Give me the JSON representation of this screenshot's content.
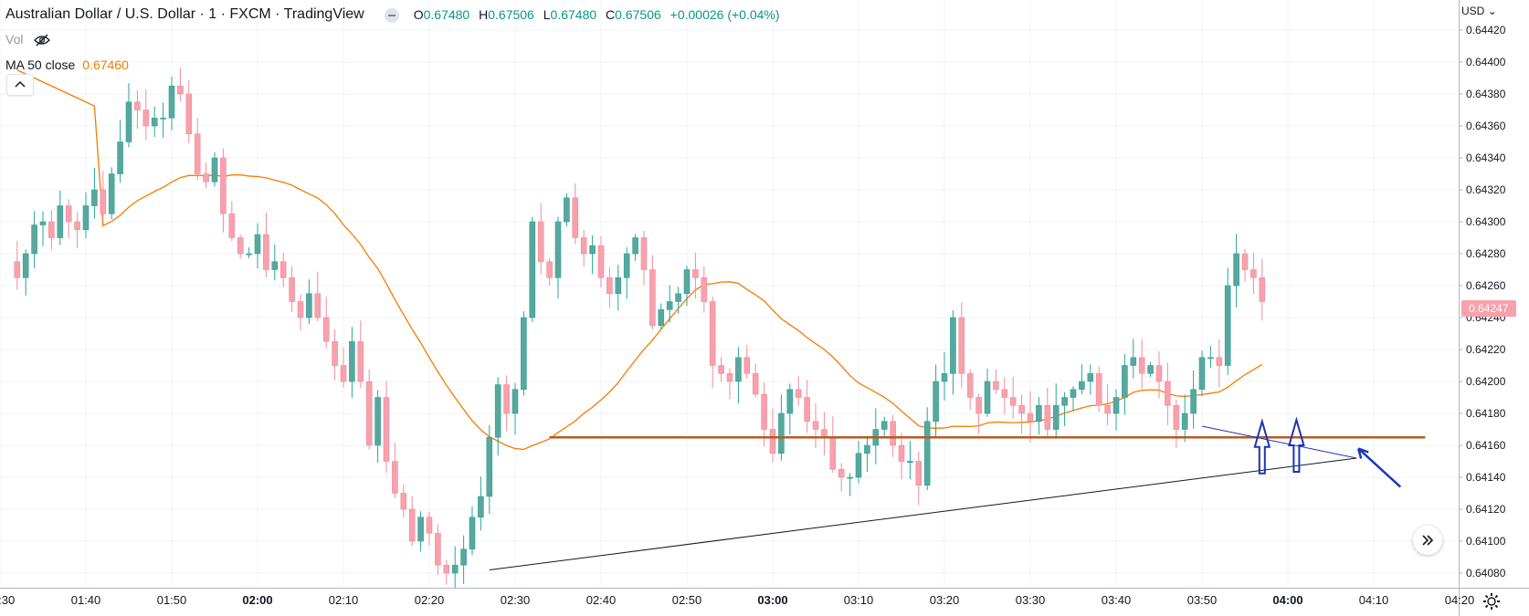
{
  "header": {
    "title": "Australian Dollar / U.S. Dollar · 1 · FXCM · TradingView",
    "ohlc": {
      "o_label": "O",
      "o_value": "0.67480",
      "h_label": "H",
      "h_value": "0.67506",
      "l_label": "L",
      "l_value": "0.67480",
      "c_label": "C",
      "c_value": "0.67506",
      "change": "+0.00026 (+0.04%)"
    },
    "vol_label": "Vol",
    "ma_label": "MA 50 close",
    "ma_value": "0.67460"
  },
  "price_scale": {
    "currency": "USD",
    "current_price": "0.64247",
    "current_price_color": "#f7a1ad"
  },
  "colors": {
    "up": "#26a69a",
    "down": "#ef5350",
    "ma": "#f57c00",
    "support_line": "#b85a1f",
    "arrows": "#1a35b8"
  },
  "icons": {
    "title_chip": "eye-off-chip-icon",
    "vol_visibility": "eye-off-icon",
    "collapse": "chevron-up-icon",
    "scroll": "double-chevron-right-icon",
    "settings": "gear-icon"
  },
  "chart_data": {
    "type": "candlestick",
    "title": "Australian Dollar / U.S. Dollar · 1 · FXCM · TradingView",
    "y_ticks": [
      "0.64420",
      "0.64400",
      "0.64380",
      "0.64360",
      "0.64340",
      "0.64320",
      "0.64300",
      "0.64280",
      "0.64260",
      "0.64240",
      "0.64220",
      "0.64200",
      "0.64180",
      "0.64160",
      "0.64140",
      "0.64120",
      "0.64100",
      "0.64080"
    ],
    "ylim": [
      0.6407,
      0.6443
    ],
    "x_ticks": [
      {
        "label": "01:30",
        "bold": false
      },
      {
        "label": "01:40",
        "bold": false
      },
      {
        "label": "01:50",
        "bold": false
      },
      {
        "label": "02:00",
        "bold": true
      },
      {
        "label": "02:10",
        "bold": false
      },
      {
        "label": "02:20",
        "bold": false
      },
      {
        "label": "02:30",
        "bold": false
      },
      {
        "label": "02:40",
        "bold": false
      },
      {
        "label": "02:50",
        "bold": false
      },
      {
        "label": "03:00",
        "bold": true
      },
      {
        "label": "03:10",
        "bold": false
      },
      {
        "label": "03:20",
        "bold": false
      },
      {
        "label": "03:30",
        "bold": false
      },
      {
        "label": "03:40",
        "bold": false
      },
      {
        "label": "03:50",
        "bold": false
      },
      {
        "label": "04:00",
        "bold": true
      },
      {
        "label": "04:10",
        "bold": false
      },
      {
        "label": "04:20",
        "bold": false
      }
    ],
    "candle_start": "01:32",
    "candle_interval_minutes": 1,
    "close": [
      0.64265,
      0.6428,
      0.64298,
      0.643,
      0.6429,
      0.6431,
      0.643,
      0.64295,
      0.6431,
      0.6432,
      0.64305,
      0.6433,
      0.6435,
      0.64375,
      0.6437,
      0.6436,
      0.64365,
      0.64365,
      0.64385,
      0.6438,
      0.64355,
      0.6433,
      0.64325,
      0.6434,
      0.64305,
      0.6429,
      0.6428,
      0.6428,
      0.64292,
      0.6427,
      0.64275,
      0.64265,
      0.6425,
      0.6424,
      0.64255,
      0.6424,
      0.64225,
      0.6421,
      0.642,
      0.64225,
      0.642,
      0.6416,
      0.6419,
      0.6415,
      0.6413,
      0.6412,
      0.641,
      0.64115,
      0.64105,
      0.64085,
      0.6408,
      0.64085,
      0.64095,
      0.64115,
      0.64128,
      0.64165,
      0.64198,
      0.6418,
      0.64195,
      0.6424,
      0.643,
      0.64275,
      0.64265,
      0.643,
      0.64315,
      0.6429,
      0.6428,
      0.64285,
      0.64265,
      0.64255,
      0.64265,
      0.6428,
      0.6429,
      0.6427,
      0.64235,
      0.64245,
      0.6425,
      0.64255,
      0.6427,
      0.64265,
      0.6425,
      0.6421,
      0.64205,
      0.642,
      0.64215,
      0.64205,
      0.64192,
      0.6417,
      0.64155,
      0.6418,
      0.64195,
      0.6419,
      0.64175,
      0.6417,
      0.64165,
      0.64145,
      0.6414,
      0.6414,
      0.64155,
      0.6416,
      0.6417,
      0.64175,
      0.6416,
      0.6415,
      0.6415,
      0.64135,
      0.64175,
      0.642,
      0.64205,
      0.6424,
      0.64205,
      0.6419,
      0.6418,
      0.642,
      0.64195,
      0.6419,
      0.64185,
      0.6418,
      0.64175,
      0.64185,
      0.6417,
      0.64185,
      0.6419,
      0.64195,
      0.642,
      0.64205,
      0.64185,
      0.6418,
      0.6419,
      0.6421,
      0.64215,
      0.64205,
      0.6421,
      0.642,
      0.64185,
      0.6417,
      0.6418,
      0.64195,
      0.64215,
      0.64215,
      0.6421,
      0.6426,
      0.6428,
      0.6427,
      0.64265,
      0.6425
    ],
    "annotations": [
      {
        "type": "horizontal-support",
        "price": 0.64165,
        "from": "02:34",
        "to": "04:16"
      },
      {
        "type": "trendline",
        "from_time": "02:27",
        "from_price": 0.64082,
        "to_time": "04:08",
        "to_price": 0.64152
      },
      {
        "type": "trendline",
        "from_time": "03:50",
        "from_price": 0.64172,
        "to_time": "04:08",
        "to_price": 0.64152
      },
      {
        "type": "up-arrow",
        "time": "03:57",
        "tip_price": 0.64175
      },
      {
        "type": "up-arrow",
        "time": "04:01",
        "tip_price": 0.64176
      },
      {
        "type": "pointer-arrow",
        "time": "04:08",
        "tip_price": 0.64158
      }
    ]
  }
}
